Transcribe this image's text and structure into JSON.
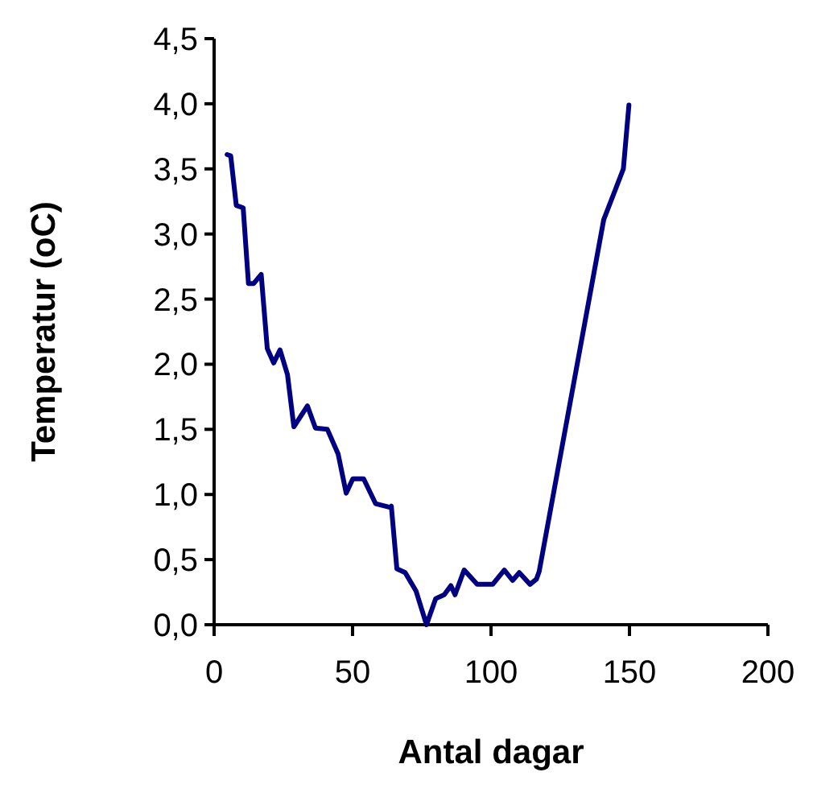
{
  "chart_data": {
    "type": "line",
    "xlabel": "Antal dagar",
    "ylabel": "Temperatur (oC)",
    "x": [
      4.7,
      6,
      8,
      10.5,
      12.4,
      14.3,
      17,
      19.2,
      21.5,
      23.8,
      26.5,
      28.8,
      33.7,
      36.6,
      40.9,
      44.8,
      47.7,
      50.1,
      54,
      58.3,
      63.7,
      64,
      66,
      69,
      72.9,
      76.7,
      80,
      83.1,
      85.5,
      87,
      90.3,
      95,
      100.6,
      104.8,
      107.8,
      110.2,
      114.1,
      116.4,
      117.4,
      140.7,
      147.8,
      149.8
    ],
    "series": [
      {
        "color": "#000080",
        "values": [
          3.61,
          3.6,
          3.22,
          3.2,
          2.62,
          2.62,
          2.69,
          2.12,
          2.01,
          2.11,
          1.92,
          1.52,
          1.68,
          1.51,
          1.5,
          1.31,
          1.01,
          1.12,
          1.12,
          0.93,
          0.9,
          0.91,
          0.43,
          0.4,
          0.26,
          0,
          0.2,
          0.23,
          0.3,
          0.23,
          0.42,
          0.31,
          0.31,
          0.42,
          0.34,
          0.4,
          0.31,
          0.35,
          0.41,
          3.11,
          3.5,
          3.99
        ]
      }
    ],
    "xlim": [
      0,
      200
    ],
    "xticks": [
      0,
      50,
      100,
      150,
      200
    ],
    "ylim": [
      0,
      4.5
    ],
    "yticks": [
      {
        "value": 0,
        "label": "0,0"
      },
      {
        "value": 0.5,
        "label": "0,5"
      },
      {
        "value": 1,
        "label": "1,0"
      },
      {
        "value": 1.5,
        "label": "1,5"
      },
      {
        "value": 2,
        "label": "2,0"
      },
      {
        "value": 2.5,
        "label": "2,5"
      },
      {
        "value": 3,
        "label": "3,0"
      },
      {
        "value": 3.5,
        "label": "3,5"
      },
      {
        "value": 4,
        "label": "4,0"
      },
      {
        "value": 4.5,
        "label": "4,5"
      }
    ],
    "grid": false,
    "marker": "none",
    "line_style": "solid"
  }
}
